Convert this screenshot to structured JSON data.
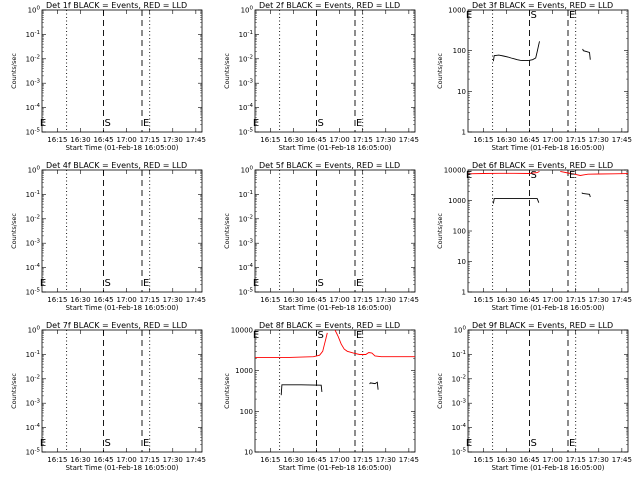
{
  "chart_data": [
    {
      "type": "line",
      "title": "Det 1f BLACK = Events, RED = LLD",
      "xlabel": "Start Time (01-Feb-18 16:05:00)",
      "ylabel": "Counts/sec",
      "ylim": [
        1,
        10
      ],
      "yscale": "log",
      "ytick_labels": [
        "10^0",
        "10^-1",
        "10^-2",
        "10^-3",
        "10^-4",
        "10^-5"
      ],
      "xtick_labels": [
        "16:15",
        "16:30",
        "16:45",
        "17:00",
        "17:15",
        "17:30",
        "17:45"
      ],
      "markers": [
        "E",
        "S",
        "E"
      ],
      "series": []
    },
    {
      "type": "line",
      "title": "Det 2f BLACK = Events, RED = LLD",
      "xlabel": "Start Time (01-Feb-18 16:05:00)",
      "ylabel": "Counts/sec",
      "ylim": [
        1,
        10
      ],
      "yscale": "log",
      "ytick_labels": [
        "10^0",
        "10^-1",
        "10^-2",
        "10^-3",
        "10^-4",
        "10^-5"
      ],
      "xtick_labels": [
        "16:15",
        "16:30",
        "16:45",
        "17:00",
        "17:15",
        "17:30",
        "17:45"
      ],
      "markers": [
        "E",
        "S",
        "E"
      ],
      "series": []
    },
    {
      "type": "line",
      "title": "Det 3f BLACK = Events, RED = LLD",
      "xlabel": "Start Time (01-Feb-18 16:05:00)",
      "ylabel": "Counts/sec",
      "ylim": [
        1,
        1000
      ],
      "yscale": "log",
      "ytick_labels": [
        "1000",
        "100",
        "10",
        "1"
      ],
      "xtick_labels": [
        "16:15",
        "16:30",
        "16:45",
        "17:00",
        "17:15",
        "17:30",
        "17:45"
      ],
      "markers": [
        "E",
        "S",
        "E"
      ],
      "series": [
        {
          "color": "#000000",
          "segments": [
            {
              "t": [
                16.5,
                17,
                20,
                23,
                26,
                28,
                30,
                32,
                34,
                36,
                38,
                40,
                42,
                44,
                45,
                46.5
              ],
              "y": [
                55,
                75,
                78,
                74,
                70,
                66,
                63,
                60,
                58,
                57,
                57,
                58,
                60,
                66,
                95,
                170
              ]
            },
            {
              "t": [
                74.5,
                75,
                77,
                79,
                79.5
              ],
              "y": [
                110,
                100,
                95,
                90,
                60
              ]
            }
          ]
        }
      ]
    },
    {
      "type": "line",
      "title": "Det 4f BLACK = Events, RED = LLD",
      "xlabel": "Start Time (01-Feb-18 16:05:00)",
      "ylabel": "Counts/sec",
      "ylim": [
        1,
        10
      ],
      "yscale": "log",
      "ytick_labels": [
        "10^0",
        "10^-1",
        "10^-2",
        "10^-3",
        "10^-4",
        "10^-5"
      ],
      "xtick_labels": [
        "16:15",
        "16:30",
        "16:45",
        "17:00",
        "17:15",
        "17:30",
        "17:45"
      ],
      "markers": [
        "E",
        "S",
        "E"
      ],
      "series": []
    },
    {
      "type": "line",
      "title": "Det 5f BLACK = Events, RED = LLD",
      "xlabel": "Start Time (01-Feb-18 16:05:00)",
      "ylabel": "Counts/sec",
      "ylim": [
        1,
        10
      ],
      "yscale": "log",
      "ytick_labels": [
        "10^0",
        "10^-1",
        "10^-2",
        "10^-3",
        "10^-4",
        "10^-5"
      ],
      "xtick_labels": [
        "16:15",
        "16:30",
        "16:45",
        "17:00",
        "17:15",
        "17:30",
        "17:45"
      ],
      "markers": [
        "E",
        "S",
        "E"
      ],
      "series": []
    },
    {
      "type": "line",
      "title": "Det 6f BLACK = Events, RED = LLD",
      "xlabel": "Start Time (01-Feb-18 16:05:00)",
      "ylabel": "Counts/sec",
      "ylim": [
        1,
        10000
      ],
      "yscale": "log",
      "ytick_labels": [
        "10000",
        "1000",
        "100",
        "10",
        "1"
      ],
      "xtick_labels": [
        "16:15",
        "16:30",
        "16:45",
        "17:00",
        "17:15",
        "17:30",
        "17:45"
      ],
      "markers": [
        "E",
        "S",
        "E"
      ],
      "series": [
        {
          "color": "#ff0000",
          "segments": [
            {
              "t": [
                0,
                10,
                20,
                30,
                40,
                45,
                46.5
              ],
              "y": [
                7500,
                7700,
                7800,
                7800,
                7700,
                8200,
                9000
              ]
            },
            {
              "t": [
                60,
                65,
                70,
                73,
                75,
                78,
                85,
                95,
                104
              ],
              "y": [
                9000,
                8000,
                7200,
                6600,
                6900,
                7300,
                7400,
                7500,
                7600
              ]
            }
          ]
        },
        {
          "color": "#000000",
          "segments": [
            {
              "t": [
                16.5,
                17,
                30,
                45,
                46
              ],
              "y": [
                800,
                1150,
                1150,
                1150,
                850
              ]
            },
            {
              "t": [
                74,
                74.5,
                77,
                79,
                79.5
              ],
              "y": [
                1800,
                1700,
                1650,
                1600,
                1300
              ]
            }
          ]
        }
      ]
    },
    {
      "type": "line",
      "title": "Det 7f BLACK = Events, RED = LLD",
      "xlabel": "Start Time (01-Feb-18 16:05:00)",
      "ylabel": "Counts/sec",
      "ylim": [
        1,
        10
      ],
      "yscale": "log",
      "ytick_labels": [
        "10^0",
        "10^-1",
        "10^-2",
        "10^-3",
        "10^-4",
        "10^-5"
      ],
      "xtick_labels": [
        "16:15",
        "16:30",
        "16:45",
        "17:00",
        "17:15",
        "17:30",
        "17:45"
      ],
      "markers": [
        "E",
        "S",
        "E"
      ],
      "series": []
    },
    {
      "type": "line",
      "title": "Det 8f BLACK = Events, RED = LLD",
      "xlabel": "Start Time (01-Feb-18 16:05:00)",
      "ylabel": "Counts/sec",
      "ylim": [
        10,
        10000
      ],
      "yscale": "log",
      "ytick_labels": [
        "10000",
        "1000",
        "100",
        "10"
      ],
      "xtick_labels": [
        "16:15",
        "16:30",
        "16:45",
        "17:00",
        "17:15",
        "17:30",
        "17:45"
      ],
      "markers": [
        "E",
        "S",
        "E"
      ],
      "series": [
        {
          "color": "#ff0000",
          "segments": [
            {
              "t": [
                0,
                10,
                20,
                30,
                38,
                42,
                44,
                45,
                46,
                47
              ],
              "y": [
                2100,
                2100,
                2100,
                2150,
                2200,
                2400,
                3000,
                4200,
                6000,
                8500
              ]
            },
            {
              "t": [
                52,
                54,
                56,
                58,
                60,
                64,
                68,
                72,
                74,
                76,
                78,
                82,
                90,
                104
              ],
              "y": [
                10000,
                7000,
                4500,
                3400,
                3000,
                2700,
                2500,
                2500,
                2800,
                2700,
                2300,
                2200,
                2200,
                2200
              ]
            }
          ]
        },
        {
          "color": "#000000",
          "segments": [
            {
              "t": [
                17,
                17.5,
                30,
                43,
                43.5
              ],
              "y": [
                250,
                450,
                450,
                440,
                300
              ]
            },
            {
              "t": [
                74.5,
                75,
                78,
                79.5,
                80
              ],
              "y": [
                470,
                500,
                480,
                520,
                340
              ]
            }
          ]
        }
      ]
    },
    {
      "type": "line",
      "title": "Det 9f BLACK = Events, RED = LLD",
      "xlabel": "Start Time (01-Feb-18 16:05:00)",
      "ylabel": "Counts/sec",
      "ylim": [
        1,
        10
      ],
      "yscale": "log",
      "ytick_labels": [
        "10^0",
        "10^-1",
        "10^-2",
        "10^-3",
        "10^-4",
        "10^-5"
      ],
      "xtick_labels": [
        "16:15",
        "16:30",
        "16:45",
        "17:00",
        "17:15",
        "17:30",
        "17:45"
      ],
      "markers": [
        "E",
        "S",
        "E"
      ],
      "series": []
    }
  ]
}
